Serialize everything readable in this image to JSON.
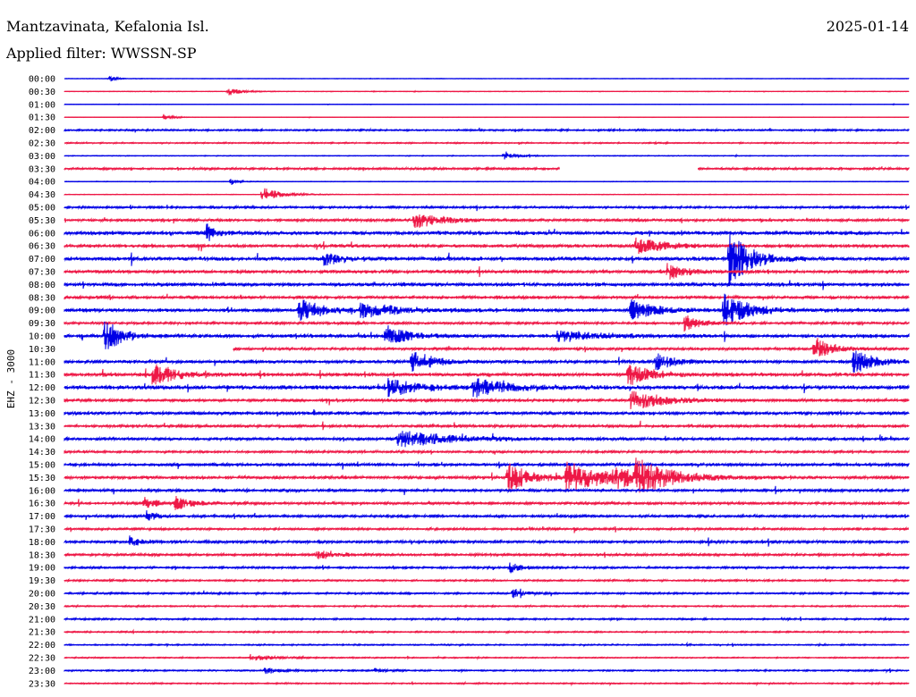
{
  "header": {
    "station": "Mantzavinata, Kefalonia Isl.",
    "date": "2025-01-14",
    "filter": "Applied filter: WWSSN-SP"
  },
  "chart_data": {
    "type": "line",
    "ylabel": "EHZ - 3000",
    "rows": [
      "00:00",
      "00:30",
      "01:00",
      "01:30",
      "02:00",
      "02:30",
      "03:00",
      "03:30",
      "04:00",
      "04:30",
      "05:00",
      "05:30",
      "06:00",
      "06:30",
      "07:00",
      "07:30",
      "08:00",
      "08:30",
      "09:00",
      "09:30",
      "10:00",
      "10:30",
      "11:00",
      "11:30",
      "12:00",
      "12:30",
      "13:00",
      "13:30",
      "14:00",
      "14:30",
      "15:00",
      "15:30",
      "16:00",
      "16:30",
      "17:00",
      "17:30",
      "18:00",
      "18:30",
      "19:00",
      "19:30",
      "20:00",
      "20:30",
      "21:00",
      "21:30",
      "22:00",
      "22:30",
      "23:00",
      "23:30"
    ],
    "colors": {
      "even": "#0000e6",
      "odd": "#ee1846"
    },
    "noise": [
      0.2,
      0.3,
      0.2,
      0.2,
      0.9,
      0.7,
      0.4,
      1.2,
      0.3,
      0.3,
      1.2,
      1.5,
      2.2,
      1.8,
      2.2,
      1.9,
      2.0,
      1.6,
      2.0,
      1.4,
      2.0,
      1.5,
      1.8,
      2.0,
      2.2,
      1.7,
      1.8,
      1.6,
      1.6,
      1.3,
      1.6,
      1.7,
      1.5,
      1.5,
      1.4,
      1.2,
      1.6,
      1.4,
      1.1,
      1.0,
      1.0,
      0.8,
      0.9,
      0.8,
      0.7,
      0.6,
      0.8,
      0.7
    ],
    "gaps": [
      {
        "row": "03:30",
        "from_min": 17.6,
        "to_min": 22.5
      },
      {
        "row": "10:30",
        "from_min": 0,
        "to_min": 6.0
      }
    ],
    "events": [
      {
        "row": "00:00",
        "min": 1.6,
        "amp": 4,
        "dur": 0.2
      },
      {
        "row": "00:30",
        "min": 5.8,
        "amp": 6,
        "dur": 0.4
      },
      {
        "row": "01:30",
        "min": 3.5,
        "amp": 4,
        "dur": 0.3
      },
      {
        "row": "03:00",
        "min": 15.6,
        "amp": 6,
        "dur": 0.4
      },
      {
        "row": "04:00",
        "min": 5.9,
        "amp": 4,
        "dur": 0.3
      },
      {
        "row": "04:30",
        "min": 7.0,
        "amp": 9,
        "dur": 0.6
      },
      {
        "row": "05:30",
        "min": 12.4,
        "amp": 9,
        "dur": 1.0
      },
      {
        "row": "06:00",
        "min": 5.0,
        "amp": 10,
        "dur": 0.4
      },
      {
        "row": "06:30",
        "min": 20.3,
        "amp": 9,
        "dur": 1.0
      },
      {
        "row": "07:00",
        "min": 23.6,
        "amp": 32,
        "dur": 0.7
      },
      {
        "row": "07:00",
        "min": 9.2,
        "amp": 8,
        "dur": 0.6
      },
      {
        "row": "07:30",
        "min": 21.4,
        "amp": 10,
        "dur": 0.6
      },
      {
        "row": "09:00",
        "min": 8.3,
        "amp": 14,
        "dur": 0.8
      },
      {
        "row": "09:00",
        "min": 20.1,
        "amp": 12,
        "dur": 0.8
      },
      {
        "row": "09:00",
        "min": 23.4,
        "amp": 20,
        "dur": 0.8
      },
      {
        "row": "09:00",
        "min": 10.5,
        "amp": 8,
        "dur": 1.2
      },
      {
        "row": "09:30",
        "min": 22.0,
        "amp": 9,
        "dur": 0.6
      },
      {
        "row": "10:00",
        "min": 1.4,
        "amp": 20,
        "dur": 0.6
      },
      {
        "row": "10:00",
        "min": 11.4,
        "amp": 16,
        "dur": 0.6
      },
      {
        "row": "10:00",
        "min": 17.5,
        "amp": 7,
        "dur": 1.2
      },
      {
        "row": "10:30",
        "min": 26.6,
        "amp": 14,
        "dur": 0.6
      },
      {
        "row": "11:00",
        "min": 12.3,
        "amp": 14,
        "dur": 0.7
      },
      {
        "row": "11:00",
        "min": 21.0,
        "amp": 10,
        "dur": 0.6
      },
      {
        "row": "11:00",
        "min": 28.0,
        "amp": 14,
        "dur": 0.7
      },
      {
        "row": "11:30",
        "min": 3.1,
        "amp": 12,
        "dur": 0.8
      },
      {
        "row": "11:30",
        "min": 20.0,
        "amp": 12,
        "dur": 0.8
      },
      {
        "row": "12:00",
        "min": 11.5,
        "amp": 10,
        "dur": 1.0
      },
      {
        "row": "12:00",
        "min": 14.5,
        "amp": 10,
        "dur": 1.2
      },
      {
        "row": "12:30",
        "min": 20.1,
        "amp": 13,
        "dur": 1.0
      },
      {
        "row": "14:00",
        "min": 11.8,
        "amp": 10,
        "dur": 1.8
      },
      {
        "row": "15:30",
        "min": 15.7,
        "amp": 18,
        "dur": 0.8
      },
      {
        "row": "15:30",
        "min": 17.8,
        "amp": 16,
        "dur": 1.6
      },
      {
        "row": "15:30",
        "min": 20.3,
        "amp": 16,
        "dur": 1.2
      },
      {
        "row": "15:30",
        "min": 19.5,
        "amp": 9,
        "dur": 0.8
      },
      {
        "row": "16:30",
        "min": 3.9,
        "amp": 8,
        "dur": 0.6
      },
      {
        "row": "16:30",
        "min": 2.8,
        "amp": 7,
        "dur": 0.4
      },
      {
        "row": "17:00",
        "min": 2.9,
        "amp": 8,
        "dur": 0.3
      },
      {
        "row": "18:00",
        "min": 2.3,
        "amp": 6,
        "dur": 0.4
      },
      {
        "row": "18:30",
        "min": 8.9,
        "amp": 6,
        "dur": 0.6
      },
      {
        "row": "19:00",
        "min": 15.8,
        "amp": 6,
        "dur": 0.4
      },
      {
        "row": "20:00",
        "min": 15.9,
        "amp": 6,
        "dur": 0.4
      },
      {
        "row": "22:30",
        "min": 6.6,
        "amp": 4,
        "dur": 0.8
      },
      {
        "row": "23:00",
        "min": 7.1,
        "amp": 4,
        "dur": 0.5
      },
      {
        "row": "23:00",
        "min": 11.0,
        "amp": 3,
        "dur": 0.4
      }
    ]
  }
}
